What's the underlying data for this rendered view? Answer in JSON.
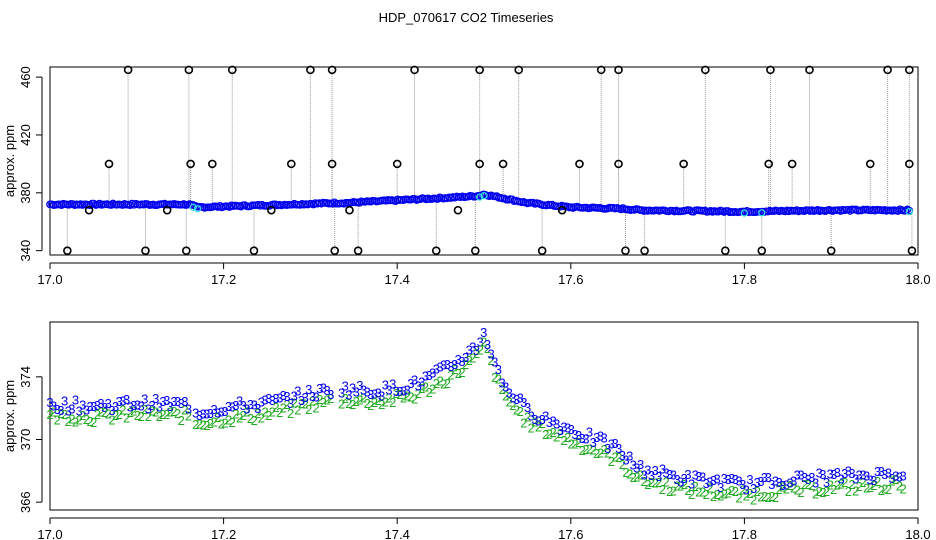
{
  "title": "HDP_070617  CO2 Timeseries",
  "colors": {
    "blue": "#0000ee",
    "green": "#22aa22",
    "cyan": "#33dddd",
    "black": "#000000",
    "grey": "#999999"
  },
  "chart_data": [
    {
      "type": "scatter",
      "ylabel": "approx. ppm",
      "xlim": [
        17.0,
        18.0
      ],
      "ylim": [
        337,
        467
      ],
      "xticks": [
        "17.0",
        "17.2",
        "17.4",
        "17.6",
        "17.8",
        "18.0"
      ],
      "yticks": [
        "340",
        "380",
        "420",
        "460"
      ],
      "xtick_values": [
        17.0,
        17.2,
        17.4,
        17.6,
        17.8,
        18.0
      ],
      "ytick_values": [
        340,
        380,
        420,
        460
      ],
      "baseline": [
        [
          17.0,
          372
        ],
        [
          17.16,
          372
        ],
        [
          17.17,
          370
        ],
        [
          17.33,
          373
        ],
        [
          17.34,
          373
        ],
        [
          17.47,
          377
        ],
        [
          17.495,
          378
        ],
        [
          17.5,
          379
        ],
        [
          17.55,
          373
        ],
        [
          17.6,
          370
        ],
        [
          17.66,
          369
        ],
        [
          17.68,
          368
        ],
        [
          17.8,
          367
        ],
        [
          17.9,
          368
        ],
        [
          17.99,
          368
        ]
      ],
      "spikes_high": [
        17.09,
        17.16,
        17.21,
        17.3,
        17.325,
        17.42,
        17.495,
        17.54,
        17.635,
        17.655,
        17.755,
        17.83,
        17.875,
        17.965,
        17.99
      ],
      "spikes_high_value": 465,
      "spikes_400": [
        17.068,
        17.162,
        17.187,
        17.278,
        17.325,
        17.4,
        17.495,
        17.522,
        17.61,
        17.655,
        17.73,
        17.828,
        17.855,
        17.945,
        17.99
      ],
      "spikes_400_value": 400,
      "spikes_low": [
        17.02,
        17.11,
        17.157,
        17.235,
        17.328,
        17.355,
        17.445,
        17.49,
        17.567,
        17.663,
        17.685,
        17.778,
        17.82,
        17.9,
        17.993
      ],
      "spikes_low_value": 340,
      "dips_367": [
        17.045,
        17.135,
        17.255,
        17.345,
        17.47,
        17.59
      ],
      "dips_367_value": 368
    },
    {
      "type": "scatter",
      "ylabel": "approx. ppm",
      "xlim": [
        17.0,
        18.0
      ],
      "ylim": [
        365.5,
        377.5
      ],
      "xticks": [
        "17.0",
        "17.2",
        "17.4",
        "17.6",
        "17.8",
        "18.0"
      ],
      "yticks": [
        "366",
        "370",
        "374"
      ],
      "xtick_values": [
        17.0,
        17.2,
        17.4,
        17.6,
        17.8,
        18.0
      ],
      "ytick_values": [
        366,
        370,
        374
      ],
      "series": [
        {
          "label": "3",
          "color": "#0000ee"
        },
        {
          "label": "2",
          "color": "#22aa22"
        }
      ],
      "trend": [
        [
          17.0,
          372.1
        ],
        [
          17.05,
          372.0
        ],
        [
          17.1,
          372.2
        ],
        [
          17.16,
          372.1
        ],
        [
          17.165,
          371.6
        ],
        [
          17.2,
          371.9
        ],
        [
          17.25,
          372.2
        ],
        [
          17.3,
          372.8
        ],
        [
          17.33,
          373.1
        ],
        [
          17.335,
          373.1
        ],
        [
          17.38,
          373.0
        ],
        [
          17.42,
          373.4
        ],
        [
          17.45,
          374.2
        ],
        [
          17.48,
          375.3
        ],
        [
          17.495,
          376.0
        ],
        [
          17.5,
          376.8
        ],
        [
          17.52,
          373.6
        ],
        [
          17.55,
          371.7
        ],
        [
          17.6,
          370.5
        ],
        [
          17.65,
          369.4
        ],
        [
          17.68,
          368.0
        ],
        [
          17.73,
          367.4
        ],
        [
          17.8,
          367.0
        ],
        [
          17.85,
          367.3
        ],
        [
          17.9,
          367.5
        ],
        [
          17.95,
          367.6
        ],
        [
          17.99,
          367.8
        ]
      ]
    }
  ]
}
